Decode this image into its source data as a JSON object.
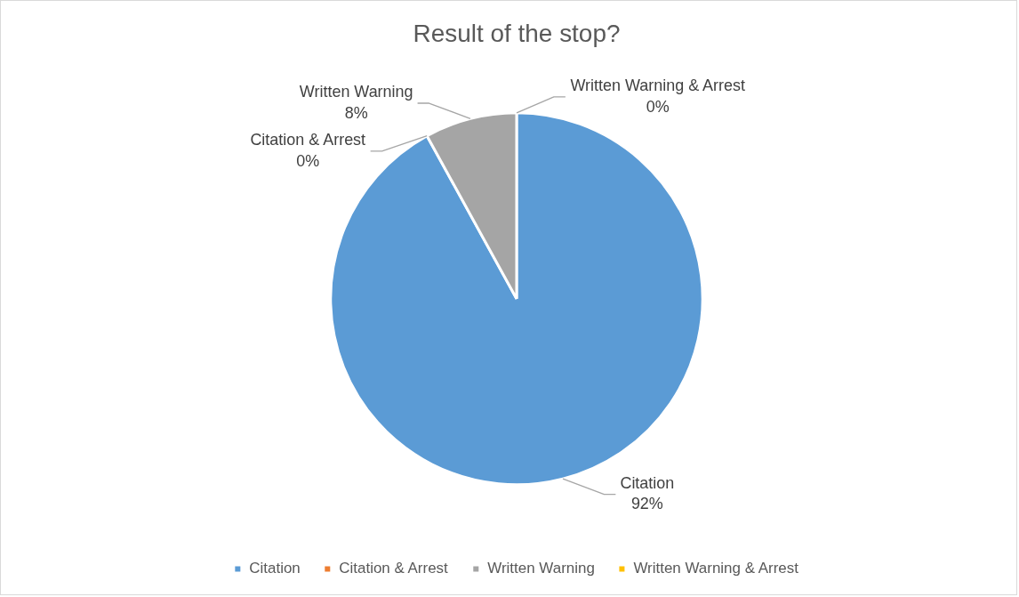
{
  "chart_data": {
    "type": "pie",
    "title": "Result of the stop?",
    "categories": [
      "Citation",
      "Citation & Arrest",
      "Written Warning",
      "Written Warning & Arrest"
    ],
    "values": [
      92,
      0,
      8,
      0
    ],
    "value_labels": [
      "92%",
      "0%",
      "8%",
      "0%"
    ],
    "colors": [
      "#5b9bd5",
      "#ed7d31",
      "#a5a5a5",
      "#ffc000"
    ],
    "legend": "bottom"
  }
}
